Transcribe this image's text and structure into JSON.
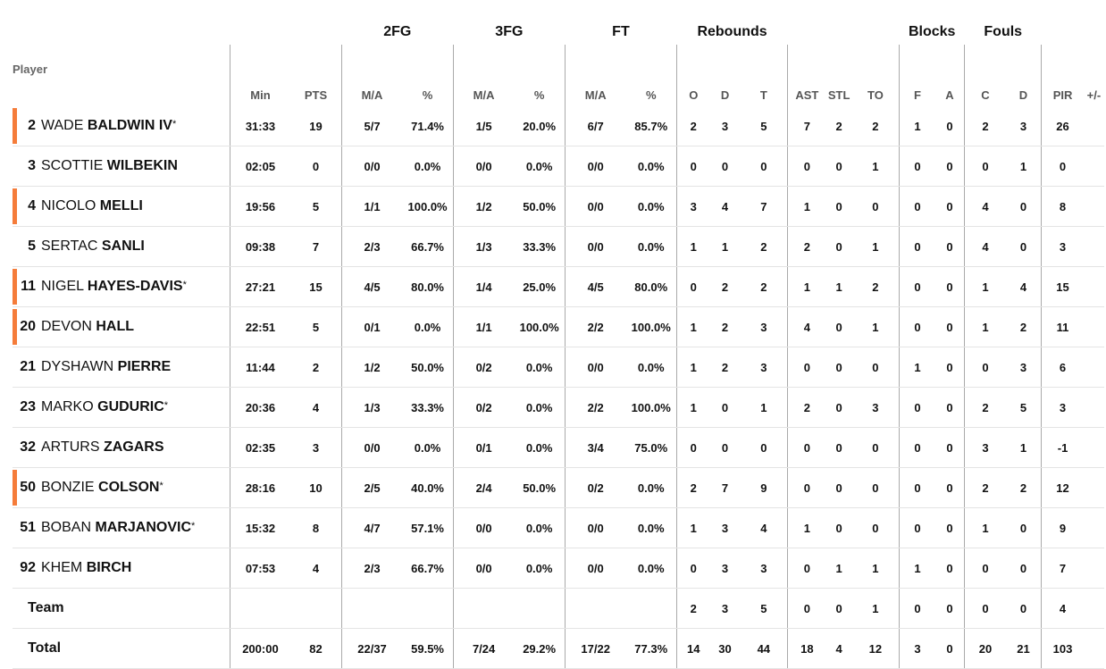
{
  "headers": {
    "player": "Player",
    "min": "Min",
    "pts": "PTS",
    "groups": {
      "fg2": "2FG",
      "fg3": "3FG",
      "ft": "FT",
      "reb": "Rebounds",
      "blk": "Blocks",
      "fouls": "Fouls"
    },
    "ma": "M/A",
    "pct": "%",
    "o": "O",
    "d": "D",
    "t": "T",
    "ast": "AST",
    "stl": "STL",
    "to": "TO",
    "f": "F",
    "a": "A",
    "c": "C",
    "fd": "D",
    "pir": "PIR",
    "pm": "+/-"
  },
  "accent_color": "#f57c3a",
  "players": [
    {
      "no": "2",
      "first": "WADE",
      "last": "BALDWIN IV",
      "star": "*",
      "starter": true,
      "min": "31:33",
      "pts": "19",
      "fg2": "5/7",
      "fg2p": "71.4%",
      "fg3": "1/5",
      "fg3p": "20.0%",
      "ft": "6/7",
      "ftp": "85.7%",
      "o": "2",
      "d": "3",
      "t": "5",
      "ast": "7",
      "stl": "2",
      "to": "2",
      "bf": "1",
      "ba": "0",
      "fc": "2",
      "fd": "3",
      "pir": "26",
      "pm": ""
    },
    {
      "no": "3",
      "first": "SCOTTIE",
      "last": "WILBEKIN",
      "star": "",
      "starter": false,
      "min": "02:05",
      "pts": "0",
      "fg2": "0/0",
      "fg2p": "0.0%",
      "fg3": "0/0",
      "fg3p": "0.0%",
      "ft": "0/0",
      "ftp": "0.0%",
      "o": "0",
      "d": "0",
      "t": "0",
      "ast": "0",
      "stl": "0",
      "to": "1",
      "bf": "0",
      "ba": "0",
      "fc": "0",
      "fd": "1",
      "pir": "0",
      "pm": ""
    },
    {
      "no": "4",
      "first": "NICOLO",
      "last": "MELLI",
      "star": "",
      "starter": true,
      "min": "19:56",
      "pts": "5",
      "fg2": "1/1",
      "fg2p": "100.0%",
      "fg3": "1/2",
      "fg3p": "50.0%",
      "ft": "0/0",
      "ftp": "0.0%",
      "o": "3",
      "d": "4",
      "t": "7",
      "ast": "1",
      "stl": "0",
      "to": "0",
      "bf": "0",
      "ba": "0",
      "fc": "4",
      "fd": "0",
      "pir": "8",
      "pm": ""
    },
    {
      "no": "5",
      "first": "SERTAC",
      "last": "SANLI",
      "star": "",
      "starter": false,
      "min": "09:38",
      "pts": "7",
      "fg2": "2/3",
      "fg2p": "66.7%",
      "fg3": "1/3",
      "fg3p": "33.3%",
      "ft": "0/0",
      "ftp": "0.0%",
      "o": "1",
      "d": "1",
      "t": "2",
      "ast": "2",
      "stl": "0",
      "to": "1",
      "bf": "0",
      "ba": "0",
      "fc": "4",
      "fd": "0",
      "pir": "3",
      "pm": ""
    },
    {
      "no": "11",
      "first": "NIGEL",
      "last": "HAYES-DAVIS",
      "star": "*",
      "starter": true,
      "min": "27:21",
      "pts": "15",
      "fg2": "4/5",
      "fg2p": "80.0%",
      "fg3": "1/4",
      "fg3p": "25.0%",
      "ft": "4/5",
      "ftp": "80.0%",
      "o": "0",
      "d": "2",
      "t": "2",
      "ast": "1",
      "stl": "1",
      "to": "2",
      "bf": "0",
      "ba": "0",
      "fc": "1",
      "fd": "4",
      "pir": "15",
      "pm": ""
    },
    {
      "no": "20",
      "first": "DEVON",
      "last": "HALL",
      "star": "",
      "starter": true,
      "min": "22:51",
      "pts": "5",
      "fg2": "0/1",
      "fg2p": "0.0%",
      "fg3": "1/1",
      "fg3p": "100.0%",
      "ft": "2/2",
      "ftp": "100.0%",
      "o": "1",
      "d": "2",
      "t": "3",
      "ast": "4",
      "stl": "0",
      "to": "1",
      "bf": "0",
      "ba": "0",
      "fc": "1",
      "fd": "2",
      "pir": "11",
      "pm": ""
    },
    {
      "no": "21",
      "first": "DYSHAWN",
      "last": "PIERRE",
      "star": "",
      "starter": false,
      "min": "11:44",
      "pts": "2",
      "fg2": "1/2",
      "fg2p": "50.0%",
      "fg3": "0/2",
      "fg3p": "0.0%",
      "ft": "0/0",
      "ftp": "0.0%",
      "o": "1",
      "d": "2",
      "t": "3",
      "ast": "0",
      "stl": "0",
      "to": "0",
      "bf": "1",
      "ba": "0",
      "fc": "0",
      "fd": "3",
      "pir": "6",
      "pm": ""
    },
    {
      "no": "23",
      "first": "MARKO",
      "last": "GUDURIC",
      "star": "*",
      "starter": false,
      "min": "20:36",
      "pts": "4",
      "fg2": "1/3",
      "fg2p": "33.3%",
      "fg3": "0/2",
      "fg3p": "0.0%",
      "ft": "2/2",
      "ftp": "100.0%",
      "o": "1",
      "d": "0",
      "t": "1",
      "ast": "2",
      "stl": "0",
      "to": "3",
      "bf": "0",
      "ba": "0",
      "fc": "2",
      "fd": "5",
      "pir": "3",
      "pm": ""
    },
    {
      "no": "32",
      "first": "ARTURS",
      "last": "ZAGARS",
      "star": "",
      "starter": false,
      "min": "02:35",
      "pts": "3",
      "fg2": "0/0",
      "fg2p": "0.0%",
      "fg3": "0/1",
      "fg3p": "0.0%",
      "ft": "3/4",
      "ftp": "75.0%",
      "o": "0",
      "d": "0",
      "t": "0",
      "ast": "0",
      "stl": "0",
      "to": "0",
      "bf": "0",
      "ba": "0",
      "fc": "3",
      "fd": "1",
      "pir": "-1",
      "pm": ""
    },
    {
      "no": "50",
      "first": "BONZIE",
      "last": "COLSON",
      "star": "*",
      "starter": true,
      "min": "28:16",
      "pts": "10",
      "fg2": "2/5",
      "fg2p": "40.0%",
      "fg3": "2/4",
      "fg3p": "50.0%",
      "ft": "0/2",
      "ftp": "0.0%",
      "o": "2",
      "d": "7",
      "t": "9",
      "ast": "0",
      "stl": "0",
      "to": "0",
      "bf": "0",
      "ba": "0",
      "fc": "2",
      "fd": "2",
      "pir": "12",
      "pm": ""
    },
    {
      "no": "51",
      "first": "BOBAN",
      "last": "MARJANOVIC",
      "star": "*",
      "starter": false,
      "min": "15:32",
      "pts": "8",
      "fg2": "4/7",
      "fg2p": "57.1%",
      "fg3": "0/0",
      "fg3p": "0.0%",
      "ft": "0/0",
      "ftp": "0.0%",
      "o": "1",
      "d": "3",
      "t": "4",
      "ast": "1",
      "stl": "0",
      "to": "0",
      "bf": "0",
      "ba": "0",
      "fc": "1",
      "fd": "0",
      "pir": "9",
      "pm": ""
    },
    {
      "no": "92",
      "first": "KHEM",
      "last": "BIRCH",
      "star": "",
      "starter": false,
      "min": "07:53",
      "pts": "4",
      "fg2": "2/3",
      "fg2p": "66.7%",
      "fg3": "0/0",
      "fg3p": "0.0%",
      "ft": "0/0",
      "ftp": "0.0%",
      "o": "0",
      "d": "3",
      "t": "3",
      "ast": "0",
      "stl": "1",
      "to": "1",
      "bf": "1",
      "ba": "0",
      "fc": "0",
      "fd": "0",
      "pir": "7",
      "pm": ""
    }
  ],
  "team": {
    "label": "Team",
    "min": "",
    "pts": "",
    "fg2": "",
    "fg2p": "",
    "fg3": "",
    "fg3p": "",
    "ft": "",
    "ftp": "",
    "o": "2",
    "d": "3",
    "t": "5",
    "ast": "0",
    "stl": "0",
    "to": "1",
    "bf": "0",
    "ba": "0",
    "fc": "0",
    "fd": "0",
    "pir": "4",
    "pm": ""
  },
  "total": {
    "label": "Total",
    "min": "200:00",
    "pts": "82",
    "fg2": "22/37",
    "fg2p": "59.5%",
    "fg3": "7/24",
    "fg3p": "29.2%",
    "ft": "17/22",
    "ftp": "77.3%",
    "o": "14",
    "d": "30",
    "t": "44",
    "ast": "18",
    "stl": "4",
    "to": "12",
    "bf": "3",
    "ba": "0",
    "fc": "20",
    "fd": "21",
    "pir": "103",
    "pm": ""
  }
}
